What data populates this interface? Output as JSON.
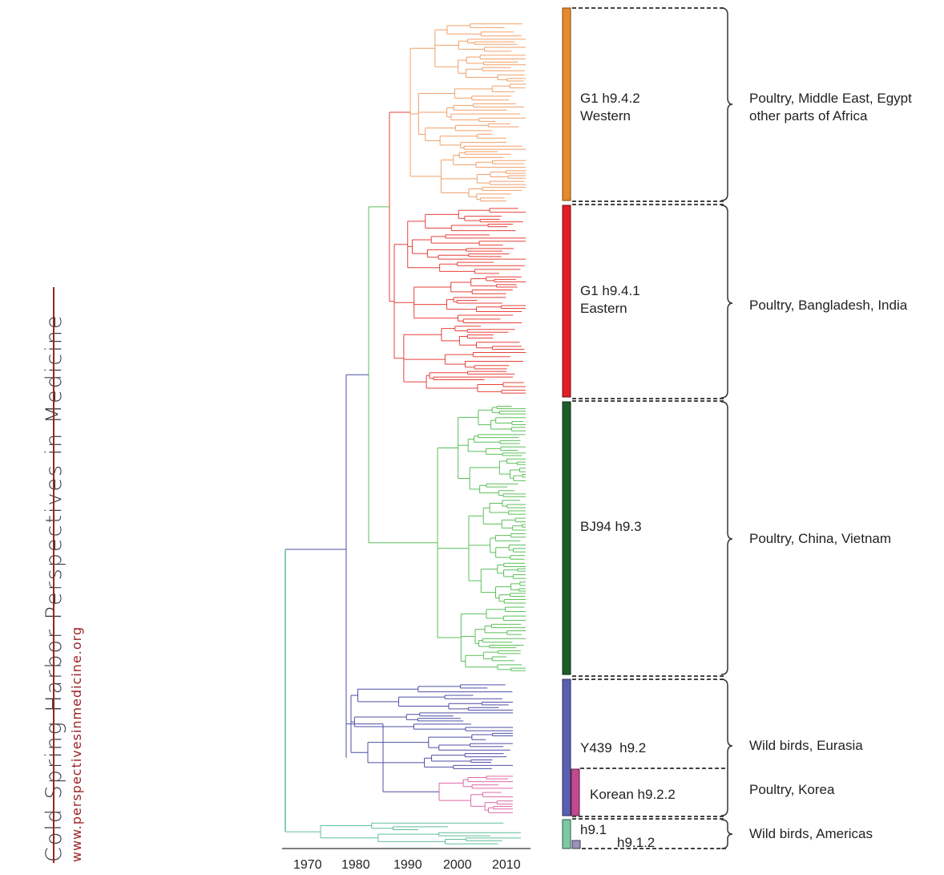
{
  "sidebar": {
    "journal_title": "Cold Spring Harbor Perspectives in Medicine",
    "url": "www.perspectivesinmedicine.org"
  },
  "axis": {
    "ticks": [
      "1970",
      "1980",
      "1990",
      "2000",
      "2010"
    ]
  },
  "lineages": [
    {
      "id": "g1-western",
      "name_line1": "G1 h9.4.2",
      "name_line2": "Western",
      "color": "#e8892d",
      "host_line1": "Poultry, Middle East, Egypt",
      "host_line2": "other parts of Africa"
    },
    {
      "id": "g1-eastern",
      "name_line1": "G1 h9.4.1",
      "name_line2": "Eastern",
      "color": "#e31d26",
      "host_line1": "Poultry, Bangladesh, India",
      "host_line2": ""
    },
    {
      "id": "bj94",
      "name_line1": "BJ94 h9.3",
      "name_line2": "",
      "color": "#1d5c2a",
      "host_line1": "Poultry, China, Vietnam",
      "host_line2": ""
    },
    {
      "id": "y439",
      "name_line1": "Y439  h9.2",
      "name_line2": "",
      "color": "#5b5fb0",
      "host_line1": "Wild birds, Eurasia",
      "host_line2": ""
    },
    {
      "id": "korean",
      "name_line1": "Korean h9.2.2",
      "name_line2": "",
      "color": "#c2498f",
      "host_line1": "Poultry, Korea",
      "host_line2": ""
    },
    {
      "id": "h91",
      "name_line1": "h9.1",
      "name_line2": "",
      "color": "#7ec8a4",
      "host_line1": "Wild birds, Americas",
      "host_line2": ""
    },
    {
      "id": "h912",
      "name_line1": "h9.1.2",
      "name_line2": "",
      "color": "#9b93b6",
      "host_line1": "",
      "host_line2": ""
    }
  ],
  "tree_colors": {
    "orange": "#f0a06a",
    "red": "#e8413a",
    "green": "#5cbf5a",
    "blue": "#4d4fa6",
    "pink": "#e06aa8",
    "teal": "#5fbf97",
    "trunk_gray": "#777777"
  }
}
